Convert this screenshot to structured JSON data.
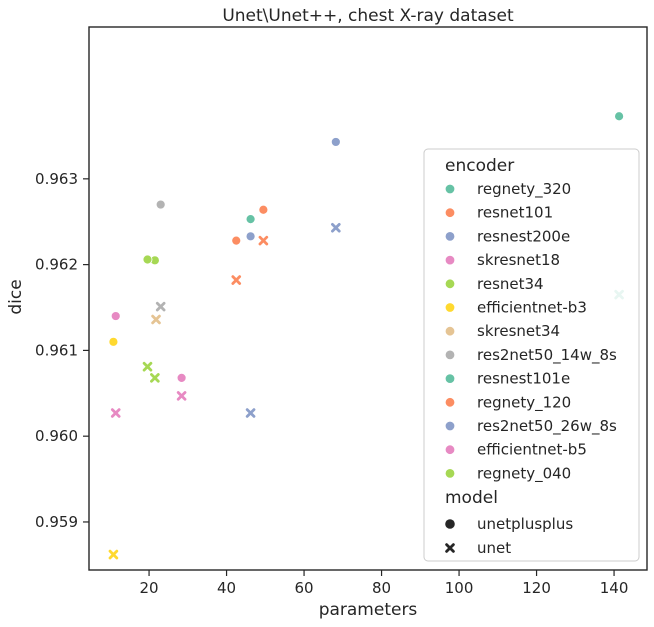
{
  "chart_data": {
    "type": "scatter",
    "title": "Unet\\Unet++, chest X-ray dataset",
    "xlabel": "parameters",
    "ylabel": "dice",
    "xlim": [
      4.5,
      148.5
    ],
    "ylim": [
      0.95844,
      0.96477
    ],
    "xticks": [
      20,
      40,
      60,
      80,
      100,
      120,
      140
    ],
    "yticks": [
      0.959,
      0.96,
      0.961,
      0.962,
      0.963
    ],
    "ytick_labels": [
      "0.959",
      "0.960",
      "0.961",
      "0.962",
      "0.963"
    ],
    "grid": false,
    "legend_placement": "right",
    "legend": {
      "encoder_title": "encoder",
      "model_title": "model",
      "models": [
        {
          "name": "unetplusplus",
          "marker": "circle"
        },
        {
          "name": "unet",
          "marker": "x"
        }
      ]
    },
    "series": [
      {
        "name": "regnety_320",
        "color": "#66c2a5",
        "points": [
          {
            "x": 141.3,
            "y": 0.96373,
            "model": "unetplusplus"
          },
          {
            "x": 141.3,
            "y": 0.96165,
            "model": "unet"
          }
        ]
      },
      {
        "name": "resnet101",
        "color": "#fc8d62",
        "points": [
          {
            "x": 42.5,
            "y": 0.96228,
            "model": "unetplusplus"
          },
          {
            "x": 42.5,
            "y": 0.96182,
            "model": "unet"
          }
        ]
      },
      {
        "name": "resnest200e",
        "color": "#8da0cb",
        "points": [
          {
            "x": 68.2,
            "y": 0.96343,
            "model": "unetplusplus"
          },
          {
            "x": 68.2,
            "y": 0.96243,
            "model": "unet"
          }
        ]
      },
      {
        "name": "skresnet18",
        "color": "#e78ac3",
        "points": [
          {
            "x": 11.4,
            "y": 0.9614,
            "model": "unetplusplus"
          },
          {
            "x": 11.4,
            "y": 0.96027,
            "model": "unet"
          }
        ]
      },
      {
        "name": "resnet34",
        "color": "#a6d854",
        "points": [
          {
            "x": 21.5,
            "y": 0.96205,
            "model": "unetplusplus"
          },
          {
            "x": 21.5,
            "y": 0.96068,
            "model": "unet"
          }
        ]
      },
      {
        "name": "efficientnet-b3",
        "color": "#ffd92f",
        "points": [
          {
            "x": 10.8,
            "y": 0.9611,
            "model": "unetplusplus"
          },
          {
            "x": 10.8,
            "y": 0.95862,
            "model": "unet"
          }
        ]
      },
      {
        "name": "skresnet34",
        "color": "#e5c494",
        "points": [
          {
            "x": 21.8,
            "y": 0.96136,
            "model": "unet"
          }
        ]
      },
      {
        "name": "res2net50_14w_8s",
        "color": "#b3b3b3",
        "points": [
          {
            "x": 23.0,
            "y": 0.9627,
            "model": "unetplusplus"
          },
          {
            "x": 23.0,
            "y": 0.96151,
            "model": "unet"
          }
        ]
      },
      {
        "name": "resnest101e",
        "color": "#66c2a5",
        "points": [
          {
            "x": 46.2,
            "y": 0.96253,
            "model": "unetplusplus"
          }
        ]
      },
      {
        "name": "regnety_120",
        "color": "#fc8d62",
        "points": [
          {
            "x": 49.5,
            "y": 0.96264,
            "model": "unetplusplus"
          },
          {
            "x": 49.5,
            "y": 0.96228,
            "model": "unet"
          }
        ]
      },
      {
        "name": "res2net50_26w_8s",
        "color": "#8da0cb",
        "points": [
          {
            "x": 46.2,
            "y": 0.96233,
            "model": "unetplusplus"
          },
          {
            "x": 46.2,
            "y": 0.96027,
            "model": "unet"
          }
        ]
      },
      {
        "name": "efficientnet-b5",
        "color": "#e78ac3",
        "points": [
          {
            "x": 28.4,
            "y": 0.96068,
            "model": "unetplusplus"
          },
          {
            "x": 28.4,
            "y": 0.96047,
            "model": "unet"
          }
        ]
      },
      {
        "name": "regnety_040",
        "color": "#a6d854",
        "points": [
          {
            "x": 19.6,
            "y": 0.96206,
            "model": "unetplusplus"
          },
          {
            "x": 19.6,
            "y": 0.96081,
            "model": "unet"
          }
        ]
      }
    ]
  }
}
